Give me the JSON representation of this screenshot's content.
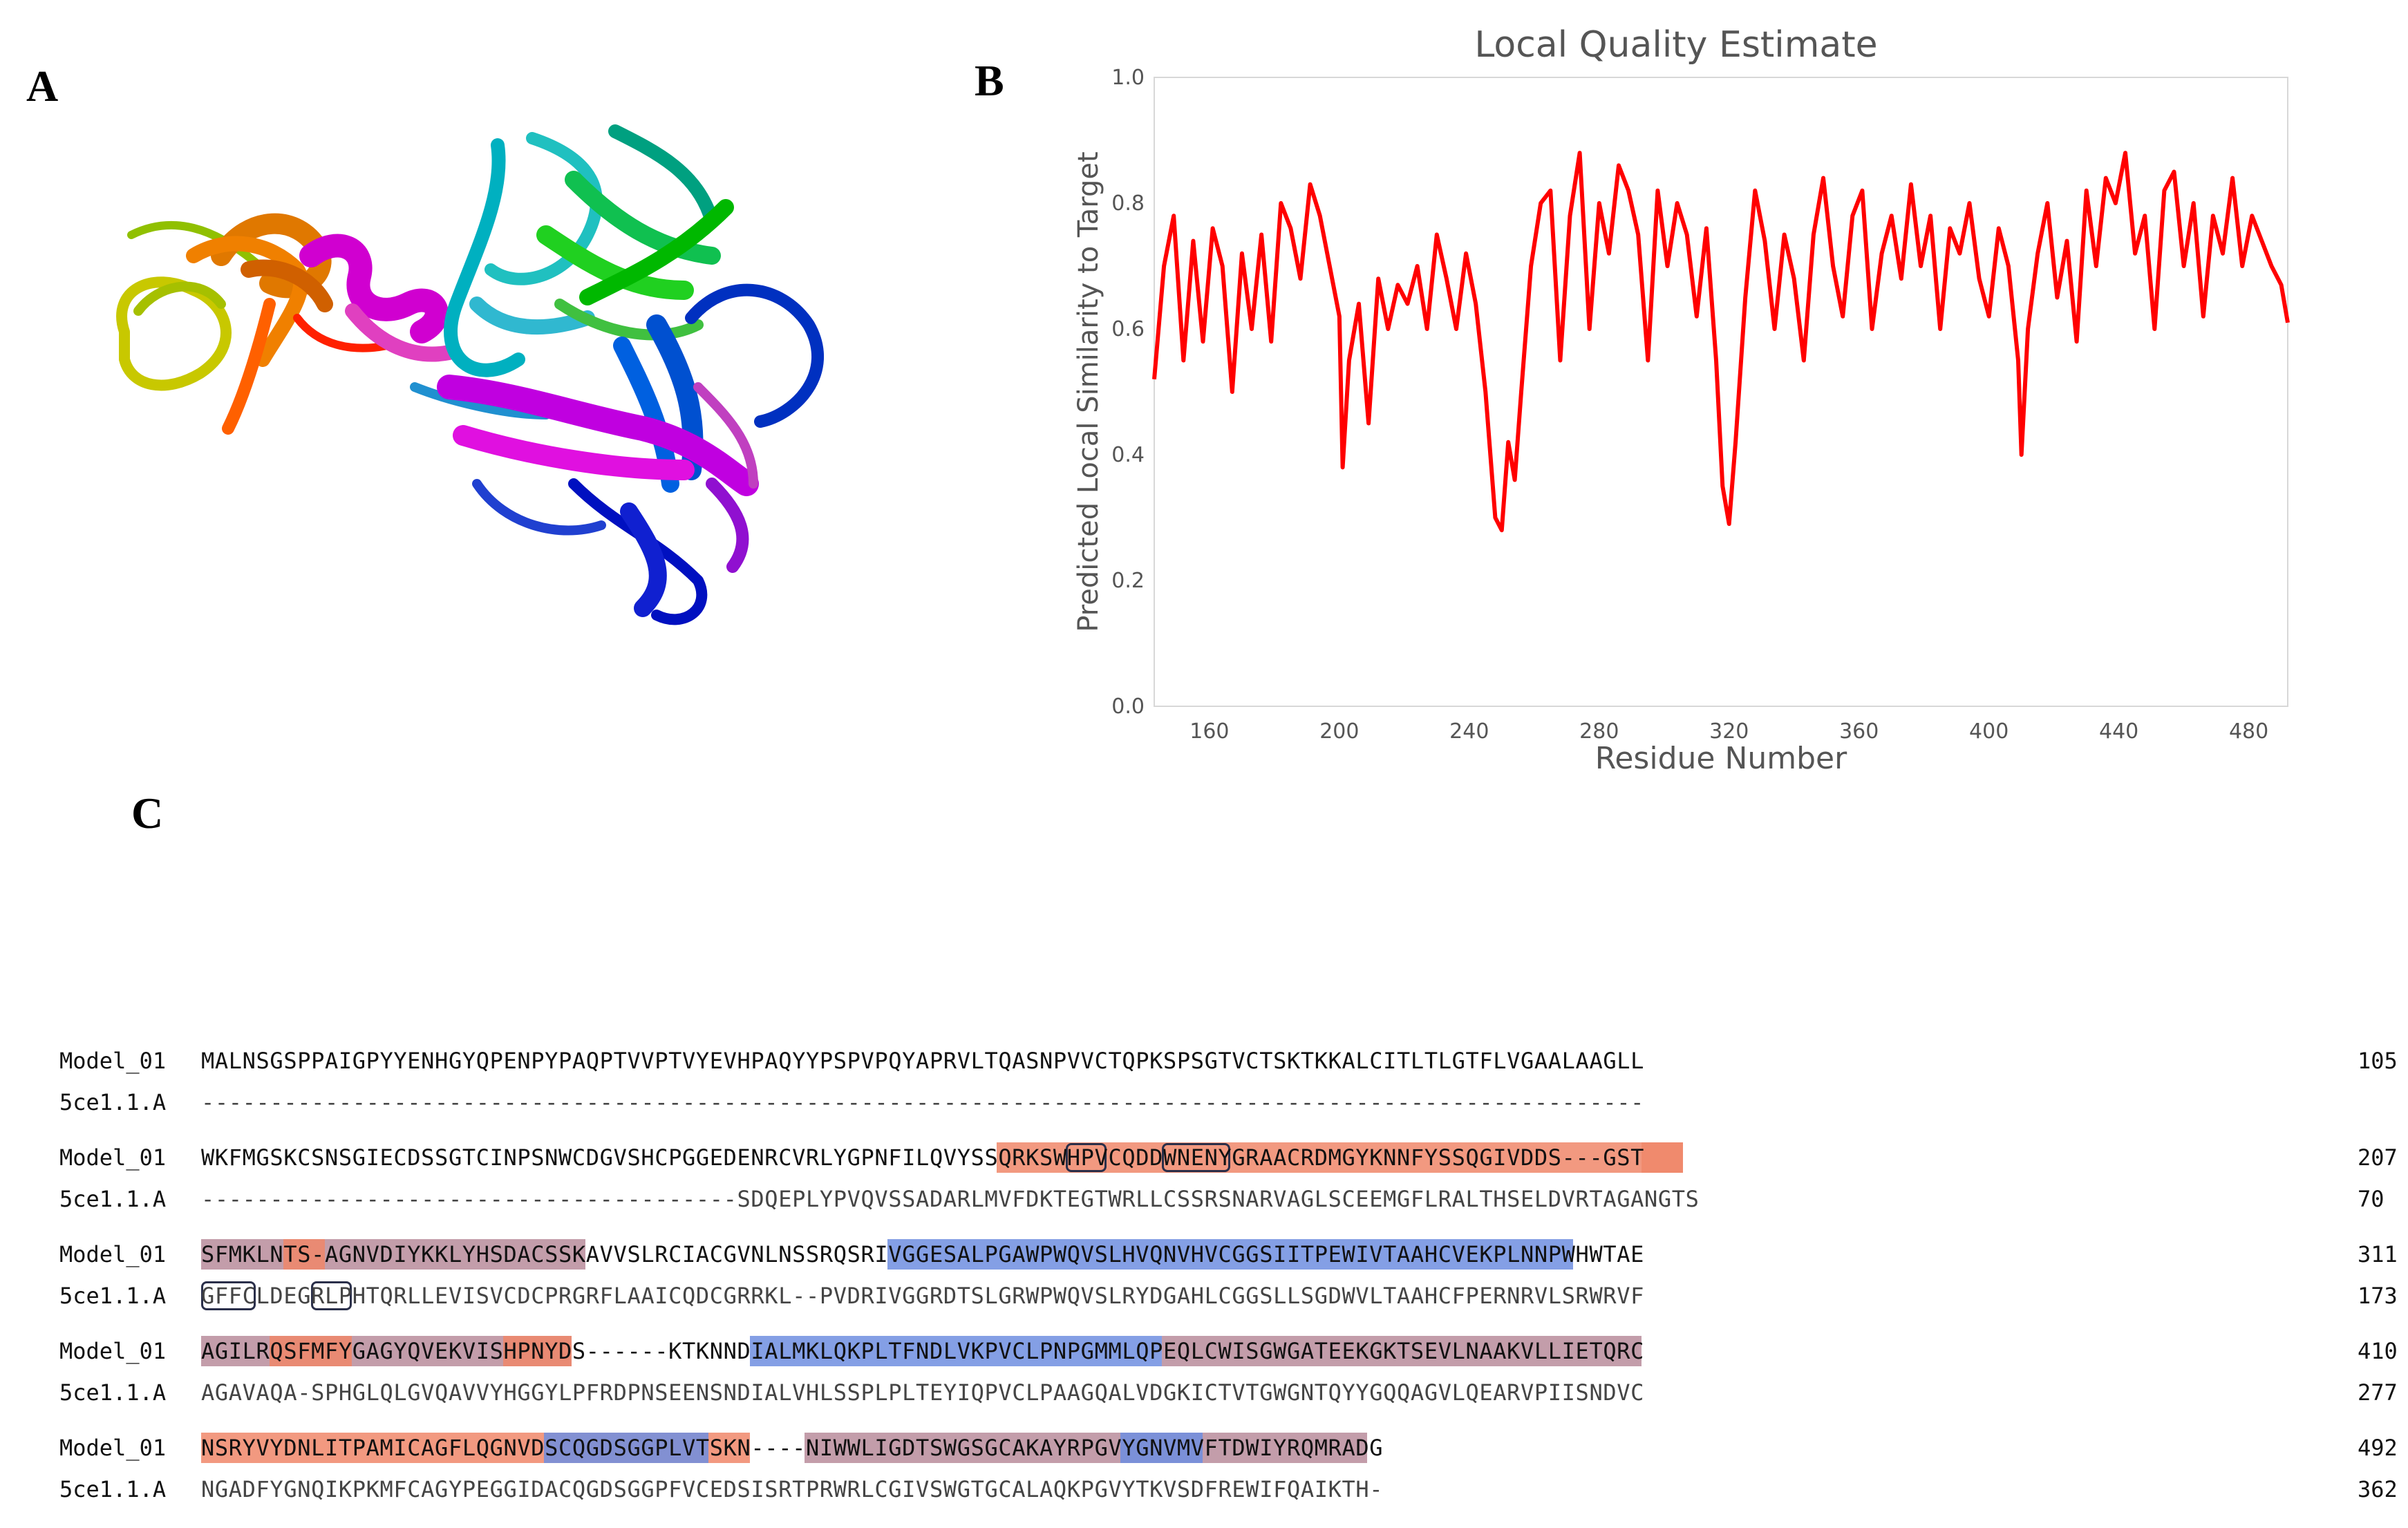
{
  "panels": {
    "a": "A",
    "b": "B",
    "c": "C"
  },
  "chart_data": {
    "type": "line",
    "title": "Local Quality Estimate",
    "xlabel": "Residue Number",
    "ylabel": "Predicted Local Similarity to Target",
    "xlim": [
      143,
      492
    ],
    "ylim": [
      0.0,
      1.0
    ],
    "xticks": [
      "160",
      "200",
      "240",
      "280",
      "320",
      "360",
      "400",
      "440",
      "480"
    ],
    "yticks": [
      "0.0",
      "0.2",
      "0.4",
      "0.6",
      "0.8",
      "1.0"
    ],
    "color": "#ff0000",
    "x": [
      143,
      146,
      149,
      152,
      155,
      158,
      161,
      164,
      167,
      170,
      173,
      176,
      179,
      182,
      185,
      188,
      191,
      194,
      197,
      200,
      201,
      203,
      206,
      209,
      212,
      215,
      218,
      221,
      224,
      227,
      230,
      233,
      236,
      239,
      242,
      245,
      248,
      250,
      252,
      254,
      256,
      259,
      262,
      265,
      268,
      271,
      274,
      277,
      280,
      283,
      286,
      289,
      292,
      295,
      298,
      301,
      304,
      307,
      310,
      313,
      316,
      318,
      320,
      322,
      325,
      328,
      331,
      334,
      337,
      340,
      343,
      346,
      349,
      352,
      355,
      358,
      361,
      364,
      367,
      370,
      373,
      376,
      379,
      382,
      385,
      388,
      391,
      394,
      397,
      400,
      403,
      406,
      409,
      410,
      412,
      415,
      418,
      421,
      424,
      427,
      430,
      433,
      436,
      439,
      442,
      445,
      448,
      451,
      454,
      457,
      460,
      463,
      466,
      469,
      472,
      475,
      478,
      481,
      484,
      487,
      490,
      492
    ],
    "y": [
      0.52,
      0.7,
      0.78,
      0.55,
      0.74,
      0.58,
      0.76,
      0.7,
      0.5,
      0.72,
      0.6,
      0.75,
      0.58,
      0.8,
      0.76,
      0.68,
      0.83,
      0.78,
      0.7,
      0.62,
      0.38,
      0.55,
      0.64,
      0.45,
      0.68,
      0.6,
      0.67,
      0.64,
      0.7,
      0.6,
      0.75,
      0.68,
      0.6,
      0.72,
      0.64,
      0.5,
      0.3,
      0.28,
      0.42,
      0.36,
      0.5,
      0.7,
      0.8,
      0.82,
      0.55,
      0.78,
      0.88,
      0.6,
      0.8,
      0.72,
      0.86,
      0.82,
      0.75,
      0.55,
      0.82,
      0.7,
      0.8,
      0.75,
      0.62,
      0.76,
      0.55,
      0.35,
      0.29,
      0.42,
      0.65,
      0.82,
      0.74,
      0.6,
      0.75,
      0.68,
      0.55,
      0.75,
      0.84,
      0.7,
      0.62,
      0.78,
      0.82,
      0.6,
      0.72,
      0.78,
      0.68,
      0.83,
      0.7,
      0.78,
      0.6,
      0.76,
      0.72,
      0.8,
      0.68,
      0.62,
      0.76,
      0.7,
      0.55,
      0.4,
      0.6,
      0.72,
      0.8,
      0.65,
      0.74,
      0.58,
      0.82,
      0.7,
      0.84,
      0.8,
      0.88,
      0.72,
      0.78,
      0.6,
      0.82,
      0.85,
      0.7,
      0.8,
      0.62,
      0.78,
      0.72,
      0.84,
      0.7,
      0.78,
      0.74,
      0.7,
      0.67,
      0.61
    ]
  },
  "alignment": {
    "blocks": [
      {
        "model": {
          "name": "Model_01",
          "seq": "MALNSGSPPAIGPYYENHGYQPENPYPAQPTVVPTVYEVHPAQYYPSPVPQYAPRVLTQASNPVVCTQPKSPSGTVCTSKTKKALCITLTLGTFLVGAALAAGLL",
          "end": "105"
        },
        "template": {
          "name": "5ce1.1.A",
          "seq": "---------------------------------------------------------------------------------------------------------",
          "end": ""
        }
      },
      {
        "model": {
          "name": "Model_01",
          "seq": "WKFMGSKCSNSGIECDSSGTCINPSNWCDGVSHCPGGEDENRCVRLYGPNFILQVYSSQRKSWHPVCQDDWNENYGRAACRDMGYKNNFYSSQGIVDDS---GST",
          "end": "207"
        },
        "template": {
          "name": "5ce1.1.A",
          "seq": "---------------------------------------SDQEPLYPVQVSSADARLMVFDKTEGTWRLLCSSRSNARVAGLSCEEMGFLRALTHSELDVRTAGANGTS",
          "end": "70"
        }
      },
      {
        "model": {
          "name": "Model_01",
          "seq": "SFMKLNTS-AGNVDIYKKLYHSDACSSKAVVSLRCIACGVNLNSSRQSRIVGGESALPGAWPWQVSLHVQNVHVCGGSIITPEWIVTAAHCVEKPLNNPWHWTAE",
          "end": "311"
        },
        "template": {
          "name": "5ce1.1.A",
          "seq": "GFFCLDEGRLPHTQRLLEVISVCDCPRGRFLAAICQDCGRRKL--PVDRIVGGRDTSLGRWPWQVSLRYDGAHLCGGSLLSGDWVLTAAHCFPERNRVLSRWRVF",
          "end": "173"
        }
      },
      {
        "model": {
          "name": "Model_01",
          "seq": "AGILRQSFMFYGAGYQVEKVISHPNYDS------KTKNNDIALMKLQKPLTFNDLVKPVCLPNPGMMLQPEQLCWISGWGATEEKGKTSEVLNAAKVLLIETQRC",
          "end": "410"
        },
        "template": {
          "name": "5ce1.1.A",
          "seq": "AGAVAQA-SPHGLQLGVQAVVYHGGYLPFRDPNSEENSNDIALVHLSSPLPLTEYIQPVCLPAAGQALVDGKICTVTGWGNTQYYGQQAGVLQEARVPIISNDVC",
          "end": "277"
        }
      },
      {
        "model": {
          "name": "Model_01",
          "seq": "NSRYVYDNLITPAMICAGFLQGNVDSCQGDSGGPLVTSKN----NIWWLIGDTSWGSGCAKAYRPGVYGNVMVFTDWIYRQMRADG",
          "end": "492"
        },
        "template": {
          "name": "5ce1.1.A",
          "seq": "NGADFYGNQIKPKMFCAGYPEGGIDACQGDSGGPFVCEDSISRTPRWRLCGIVSWGTGCALAQKPGVYTKVSDFREWIFQAIKTH-",
          "end": "362"
        }
      }
    ]
  }
}
